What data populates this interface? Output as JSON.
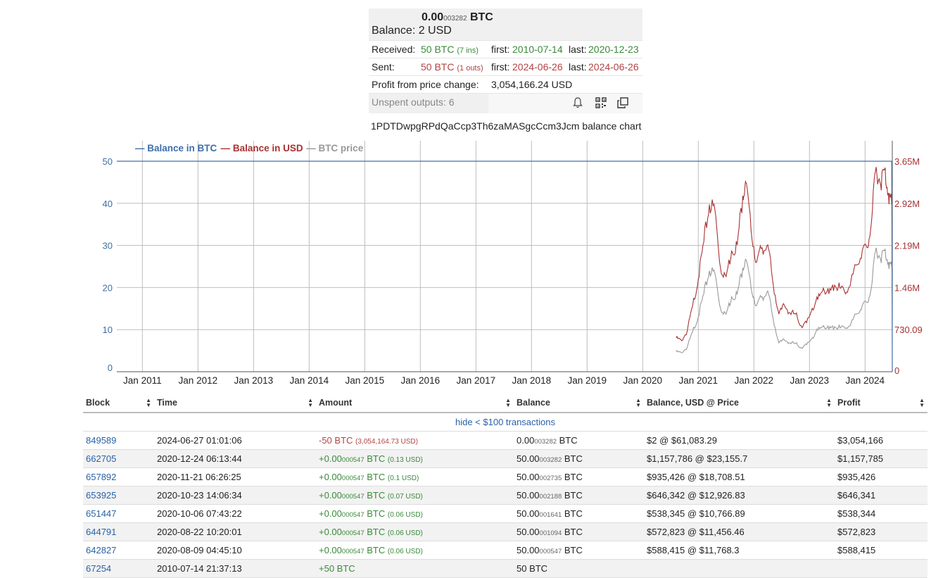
{
  "summary": {
    "balance_btc_main": "0.00",
    "balance_btc_small": "003282",
    "balance_btc_unit": "BTC",
    "balance_usd": "Balance: 2 USD",
    "received_label": "Received:",
    "received_value": "50 BTC",
    "received_count": "(7 ins)",
    "received_first_label": "first:",
    "received_first": "2010-07-14",
    "received_last_label": "last:",
    "received_last": "2020-12-23",
    "sent_label": "Sent:",
    "sent_value": "50 BTC",
    "sent_count": "(1 outs)",
    "sent_first_label": "first:",
    "sent_first": "2024-06-26",
    "sent_last_label": "last:",
    "sent_last": "2024-06-26",
    "profit_label": "Profit from price change:",
    "profit_value": "3,054,166.24 USD",
    "unspent": "Unspent outputs: 6"
  },
  "icons": {
    "bell": "bell-icon",
    "qr": "qr-code-icon",
    "copy": "copy-icon"
  },
  "chart_caption": "1PDTDwpgRPdQaCcp3Th6zaMASgcCcm3Jcm balance chart",
  "colors": {
    "btc": "#3d6fa8",
    "usd": "#a83232",
    "price": "#999999",
    "green": "#3a8a3a",
    "red": "#b24444",
    "link": "#2a62a8"
  },
  "chart_data": {
    "type": "line",
    "legend": [
      "Balance in BTC",
      "Balance in USD",
      "BTC price"
    ],
    "legend_position": "top-left",
    "x_ticks": [
      "Jan 2011",
      "Jan 2012",
      "Jan 2013",
      "Jan 2014",
      "Jan 2015",
      "Jan 2016",
      "Jan 2017",
      "Jan 2018",
      "Jan 2019",
      "Jan 2020",
      "Jan 2021",
      "Jan 2022",
      "Jan 2023",
      "Jan 2024"
    ],
    "x_range": [
      2010.54,
      2024.49
    ],
    "y_left_ticks": [
      "0",
      "10",
      "20",
      "30",
      "40",
      "50"
    ],
    "y_left_range": [
      0,
      50
    ],
    "y_right_ticks": [
      "0",
      "730.09",
      "1.46M",
      "2.19M",
      "2.92M",
      "3.65M"
    ],
    "y_right_range": [
      0,
      3650000
    ],
    "grid": true,
    "series": [
      {
        "name": "Balance in BTC",
        "axis": "left",
        "x": [
          2010.54,
          2020.6,
          2020.97,
          2024.48,
          2024.49
        ],
        "y": [
          50,
          50,
          50,
          50,
          0
        ]
      },
      {
        "name": "Balance in USD",
        "axis": "right",
        "x": [
          2020.6,
          2020.7,
          2020.8,
          2020.9,
          2021.0,
          2021.1,
          2021.2,
          2021.3,
          2021.4,
          2021.5,
          2021.6,
          2021.7,
          2021.8,
          2021.85,
          2021.95,
          2022.05,
          2022.15,
          2022.25,
          2022.35,
          2022.45,
          2022.55,
          2022.65,
          2022.75,
          2022.85,
          2022.95,
          2023.05,
          2023.15,
          2023.25,
          2023.35,
          2023.45,
          2023.55,
          2023.65,
          2023.75,
          2023.85,
          2023.95,
          2024.05,
          2024.12,
          2024.2,
          2024.28,
          2024.35,
          2024.42,
          2024.48
        ],
        "y": [
          588000,
          540000,
          700000,
          1150000,
          1600000,
          2250000,
          2900000,
          2800000,
          1800000,
          1650000,
          2100000,
          2200000,
          3050000,
          3300000,
          2450000,
          1900000,
          2150000,
          2200000,
          1500000,
          1000000,
          1150000,
          1020000,
          1000000,
          800000,
          850000,
          1100000,
          1250000,
          1450000,
          1350000,
          1500000,
          1450000,
          1350000,
          1600000,
          1850000,
          2100000,
          2150000,
          2650000,
          3550000,
          3250000,
          3500000,
          3100000,
          2900000
        ]
      },
      {
        "name": "BTC price",
        "axis": "right",
        "x": [
          2020.6,
          2020.7,
          2020.8,
          2020.9,
          2021.0,
          2021.1,
          2021.2,
          2021.3,
          2021.4,
          2021.5,
          2021.6,
          2021.7,
          2021.8,
          2021.85,
          2021.95,
          2022.05,
          2022.15,
          2022.25,
          2022.35,
          2022.45,
          2022.55,
          2022.65,
          2022.75,
          2022.85,
          2022.95,
          2023.05,
          2023.15,
          2023.25,
          2023.35,
          2023.45,
          2023.55,
          2023.65,
          2023.75,
          2023.85,
          2023.95,
          2024.05,
          2024.12,
          2024.2,
          2024.28,
          2024.35,
          2024.42,
          2024.48
        ],
        "y": [
          350000,
          330000,
          420000,
          700000,
          950000,
          1350000,
          1750000,
          1700000,
          1100000,
          1000000,
          1300000,
          1350000,
          1800000,
          1950000,
          1450000,
          1150000,
          1300000,
          1400000,
          900000,
          500000,
          550000,
          500000,
          490000,
          420000,
          470000,
          590000,
          720000,
          800000,
          740000,
          780000,
          760000,
          750000,
          850000,
          1000000,
          1150000,
          1200000,
          1500000,
          2150000,
          1950000,
          2100000,
          1900000,
          1800000
        ]
      }
    ]
  },
  "table": {
    "headers": [
      "Block",
      "Time",
      "Amount",
      "Balance",
      "Balance, USD @ Price",
      "Profit"
    ],
    "hide_link": "hide < $100 transactions",
    "rows": [
      {
        "block": "849589",
        "time": "2024-06-27 01:01:06",
        "amount_main": "-50 BTC",
        "amount_small": "",
        "amount_unit": "",
        "amount_usd": "(3,054,164.73 USD)",
        "amount_color": "red",
        "balance_main": "0.00",
        "balance_small": "003282",
        "balance_unit": "BTC",
        "usd_price": "$2 @ $61,083.29",
        "profit": "$3,054,166"
      },
      {
        "block": "662705",
        "time": "2020-12-24 06:13:44",
        "amount_main": "+0.00",
        "amount_small": "000547",
        "amount_unit": "BTC",
        "amount_usd": "(0.13 USD)",
        "amount_color": "green",
        "balance_main": "50.00",
        "balance_small": "003282",
        "balance_unit": "BTC",
        "usd_price": "$1,157,786 @ $23,155.7",
        "profit": "$1,157,785"
      },
      {
        "block": "657892",
        "time": "2020-11-21 06:26:25",
        "amount_main": "+0.00",
        "amount_small": "000547",
        "amount_unit": "BTC",
        "amount_usd": "(0.1 USD)",
        "amount_color": "green",
        "balance_main": "50.00",
        "balance_small": "002735",
        "balance_unit": "BTC",
        "usd_price": "$935,426 @ $18,708.51",
        "profit": "$935,426"
      },
      {
        "block": "653925",
        "time": "2020-10-23 14:06:34",
        "amount_main": "+0.00",
        "amount_small": "000547",
        "amount_unit": "BTC",
        "amount_usd": "(0.07 USD)",
        "amount_color": "green",
        "balance_main": "50.00",
        "balance_small": "002188",
        "balance_unit": "BTC",
        "usd_price": "$646,342 @ $12,926.83",
        "profit": "$646,341"
      },
      {
        "block": "651447",
        "time": "2020-10-06 07:43:22",
        "amount_main": "+0.00",
        "amount_small": "000547",
        "amount_unit": "BTC",
        "amount_usd": "(0.06 USD)",
        "amount_color": "green",
        "balance_main": "50.00",
        "balance_small": "001641",
        "balance_unit": "BTC",
        "usd_price": "$538,345 @ $10,766.89",
        "profit": "$538,344"
      },
      {
        "block": "644791",
        "time": "2020-08-22 10:20:01",
        "amount_main": "+0.00",
        "amount_small": "000547",
        "amount_unit": "BTC",
        "amount_usd": "(0.06 USD)",
        "amount_color": "green",
        "balance_main": "50.00",
        "balance_small": "001094",
        "balance_unit": "BTC",
        "usd_price": "$572,823 @ $11,456.46",
        "profit": "$572,823"
      },
      {
        "block": "642827",
        "time": "2020-08-09 04:45:10",
        "amount_main": "+0.00",
        "amount_small": "000547",
        "amount_unit": "BTC",
        "amount_usd": "(0.06 USD)",
        "amount_color": "green",
        "balance_main": "50.00",
        "balance_small": "000547",
        "balance_unit": "BTC",
        "usd_price": "$588,415 @ $11,768.3",
        "profit": "$588,415"
      },
      {
        "block": "67254",
        "time": "2010-07-14 21:37:13",
        "amount_main": "+50 BTC",
        "amount_small": "",
        "amount_unit": "",
        "amount_usd": "",
        "amount_color": "green",
        "balance_main": "50 BTC",
        "balance_small": "",
        "balance_unit": "",
        "usd_price": "",
        "profit": ""
      }
    ]
  }
}
